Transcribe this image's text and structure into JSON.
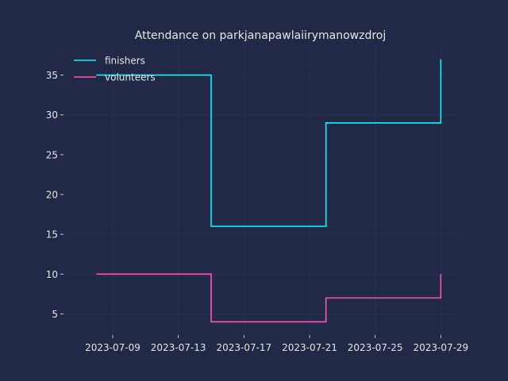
{
  "chart_data": {
    "type": "line",
    "drawstyle": "steps-post",
    "title": "Attendance on parkjanapawlaiirymanowzdroj",
    "xlabel": "",
    "ylabel": "",
    "x": [
      "2023-07-08",
      "2023-07-15",
      "2023-07-22",
      "2023-07-29"
    ],
    "series": [
      {
        "name": "finishers",
        "color": "#08F7FE",
        "values": [
          35,
          16,
          29,
          37
        ]
      },
      {
        "name": "volunteers",
        "color": "#FE53BB",
        "values": [
          10,
          4,
          7,
          10
        ]
      }
    ],
    "xlim": [
      "2023-07-06",
      "2023-07-30"
    ],
    "ylim": [
      2.35,
      38.65
    ],
    "xticks": [
      "2023-07-09",
      "2023-07-13",
      "2023-07-17",
      "2023-07-21",
      "2023-07-25",
      "2023-07-29"
    ],
    "yticks": [
      5,
      10,
      15,
      20,
      25,
      30,
      35
    ],
    "grid": true,
    "legend_position": "top-left",
    "colors": {
      "background": "#212946",
      "grid": "#2a3459",
      "text": "#e6e6e6"
    }
  }
}
